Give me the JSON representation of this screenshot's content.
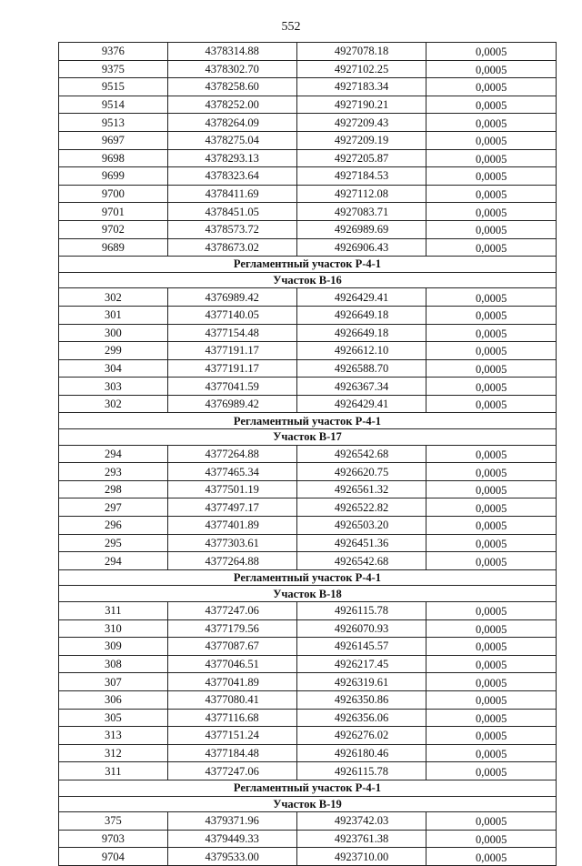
{
  "page_number": "552",
  "sections": [
    {
      "headers": [],
      "rows": [
        [
          "9376",
          "4378314.88",
          "4927078.18",
          "0,0005"
        ],
        [
          "9375",
          "4378302.70",
          "4927102.25",
          "0,0005"
        ],
        [
          "9515",
          "4378258.60",
          "4927183.34",
          "0,0005"
        ],
        [
          "9514",
          "4378252.00",
          "4927190.21",
          "0,0005"
        ],
        [
          "9513",
          "4378264.09",
          "4927209.43",
          "0,0005"
        ],
        [
          "9697",
          "4378275.04",
          "4927209.19",
          "0,0005"
        ],
        [
          "9698",
          "4378293.13",
          "4927205.87",
          "0,0005"
        ],
        [
          "9699",
          "4378323.64",
          "4927184.53",
          "0,0005"
        ],
        [
          "9700",
          "4378411.69",
          "4927112.08",
          "0,0005"
        ],
        [
          "9701",
          "4378451.05",
          "4927083.71",
          "0,0005"
        ],
        [
          "9702",
          "4378573.72",
          "4926989.69",
          "0,0005"
        ],
        [
          "9689",
          "4378673.02",
          "4926906.43",
          "0,0005"
        ]
      ]
    },
    {
      "headers": [
        "Регламентный участок Р-4-1",
        "Участок В-16"
      ],
      "rows": [
        [
          "302",
          "4376989.42",
          "4926429.41",
          "0,0005"
        ],
        [
          "301",
          "4377140.05",
          "4926649.18",
          "0,0005"
        ],
        [
          "300",
          "4377154.48",
          "4926649.18",
          "0,0005"
        ],
        [
          "299",
          "4377191.17",
          "4926612.10",
          "0,0005"
        ],
        [
          "304",
          "4377191.17",
          "4926588.70",
          "0,0005"
        ],
        [
          "303",
          "4377041.59",
          "4926367.34",
          "0,0005"
        ],
        [
          "302",
          "4376989.42",
          "4926429.41",
          "0,0005"
        ]
      ]
    },
    {
      "headers": [
        "Регламентный участок Р-4-1",
        "Участок В-17"
      ],
      "rows": [
        [
          "294",
          "4377264.88",
          "4926542.68",
          "0,0005"
        ],
        [
          "293",
          "4377465.34",
          "4926620.75",
          "0,0005"
        ],
        [
          "298",
          "4377501.19",
          "4926561.32",
          "0,0005"
        ],
        [
          "297",
          "4377497.17",
          "4926522.82",
          "0,0005"
        ],
        [
          "296",
          "4377401.89",
          "4926503.20",
          "0,0005"
        ],
        [
          "295",
          "4377303.61",
          "4926451.36",
          "0,0005"
        ],
        [
          "294",
          "4377264.88",
          "4926542.68",
          "0,0005"
        ]
      ]
    },
    {
      "headers": [
        "Регламентный участок Р-4-1",
        "Участок В-18"
      ],
      "rows": [
        [
          "311",
          "4377247.06",
          "4926115.78",
          "0,0005"
        ],
        [
          "310",
          "4377179.56",
          "4926070.93",
          "0,0005"
        ],
        [
          "309",
          "4377087.67",
          "4926145.57",
          "0,0005"
        ],
        [
          "308",
          "4377046.51",
          "4926217.45",
          "0,0005"
        ],
        [
          "307",
          "4377041.89",
          "4926319.61",
          "0,0005"
        ],
        [
          "306",
          "4377080.41",
          "4926350.86",
          "0,0005"
        ],
        [
          "305",
          "4377116.68",
          "4926356.06",
          "0,0005"
        ],
        [
          "313",
          "4377151.24",
          "4926276.02",
          "0,0005"
        ],
        [
          "312",
          "4377184.48",
          "4926180.46",
          "0,0005"
        ],
        [
          "311",
          "4377247.06",
          "4926115.78",
          "0,0005"
        ]
      ]
    },
    {
      "headers": [
        "Регламентный участок Р-4-1",
        "Участок В-19"
      ],
      "rows": [
        [
          "375",
          "4379371.96",
          "4923742.03",
          "0,0005"
        ],
        [
          "9703",
          "4379449.33",
          "4923761.38",
          "0,0005"
        ],
        [
          "9704",
          "4379533.00",
          "4923710.00",
          "0,0005"
        ]
      ]
    }
  ]
}
